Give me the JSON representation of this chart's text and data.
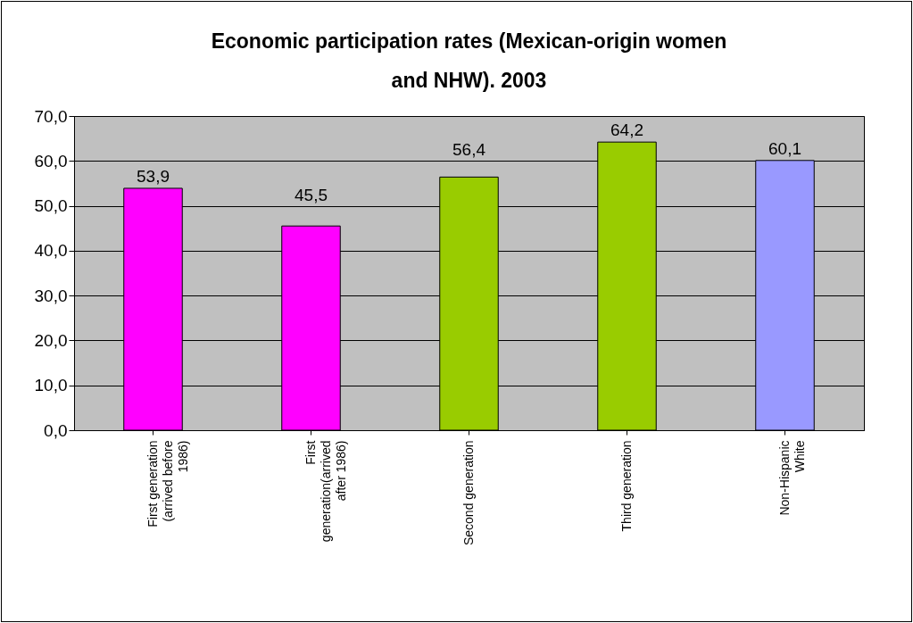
{
  "chart_data": {
    "type": "bar",
    "title": "Economic participation rates (Mexican-origin women and NHW). 2003",
    "categories": [
      "First generation (arrived before 1986)",
      "First generation(arrived after 1986)",
      "Second generation",
      "Third generation",
      "Non-Hispanic White"
    ],
    "values": [
      53.9,
      45.5,
      56.4,
      64.2,
      60.1
    ],
    "colors": [
      "#ff00ff",
      "#ff00ff",
      "#99cc00",
      "#99cc00",
      "#9999ff"
    ],
    "value_labels": [
      "53,9",
      "45,5",
      "56,4",
      "64,2",
      "60,1"
    ],
    "ylim": [
      0,
      70
    ],
    "yticks": [
      {
        "value": 0,
        "label": "0,0"
      },
      {
        "value": 10,
        "label": "10,0"
      },
      {
        "value": 20,
        "label": "20,0"
      },
      {
        "value": 30,
        "label": "30,0"
      },
      {
        "value": 40,
        "label": "40,0"
      },
      {
        "value": 50,
        "label": "50,0"
      },
      {
        "value": 60,
        "label": "60,0"
      },
      {
        "value": 70,
        "label": "70,0"
      }
    ],
    "grid": "y"
  }
}
